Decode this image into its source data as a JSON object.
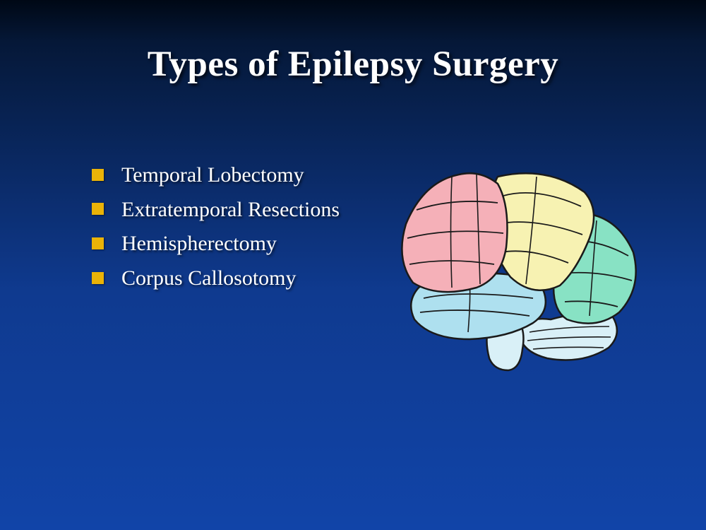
{
  "slide": {
    "title": "Types of Epilepsy Surgery",
    "title_fontsize": 51,
    "title_color": "#ffffff",
    "background_gradient": [
      "#000815",
      "#051838",
      "#0f3a8f",
      "#1144a8"
    ],
    "bullets": {
      "items": [
        "Temporal Lobectomy",
        "Extratemporal Resections",
        "Hemispherectomy",
        "Corpus Callosotomy"
      ],
      "fontsize": 30,
      "text_color": "#ffffff",
      "marker_color": "#eab308",
      "marker_shape": "square",
      "marker_size": 17
    },
    "brain_diagram": {
      "type": "infographic",
      "lobe_colors": {
        "frontal": "#f5b0b8",
        "parietal": "#f7f2b2",
        "temporal": "#aee0ef",
        "occipital": "#88e2c4",
        "cerebellum": "#d9f0f7",
        "brainstem": "#d9f0f7"
      },
      "outline_color": "#1a1a1a",
      "outline_width": 2.5
    }
  }
}
